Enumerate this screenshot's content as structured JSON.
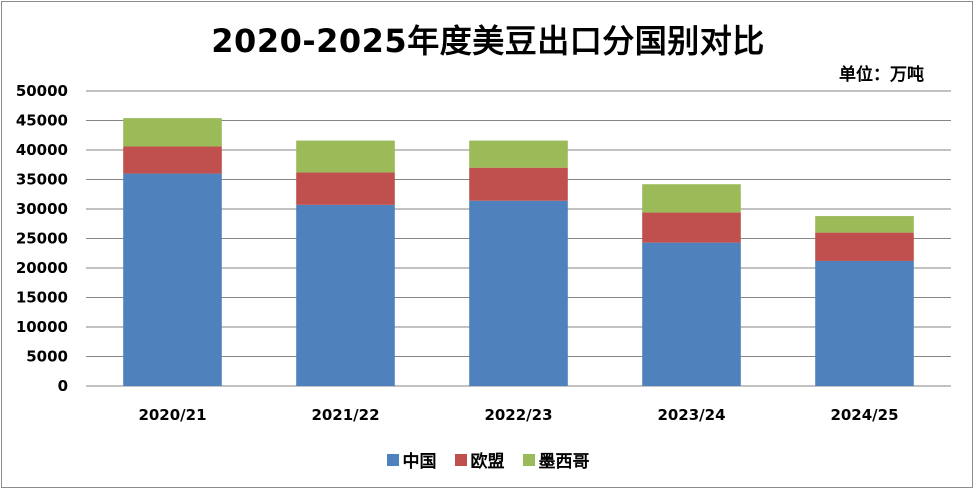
{
  "chart_data": {
    "type": "bar",
    "stacked": true,
    "title": "2020-2025年度美豆出口分国别对比",
    "unit_label": "单位：万吨",
    "categories": [
      "2020/21",
      "2021/22",
      "2022/23",
      "2023/24",
      "2024/25"
    ],
    "series": [
      {
        "name": "中国",
        "color": "#4F81BD",
        "values": [
          36000,
          30700,
          31400,
          24300,
          21200
        ]
      },
      {
        "name": "欧盟",
        "color": "#C0504D",
        "values": [
          4600,
          5500,
          5600,
          5100,
          4800
        ]
      },
      {
        "name": "墨西哥",
        "color": "#9BBB59",
        "values": [
          4800,
          5400,
          4600,
          4800,
          2800
        ]
      }
    ],
    "ylim": [
      0,
      50000
    ],
    "yticks": [
      "0",
      "5000",
      "10000",
      "15000",
      "20000",
      "25000",
      "30000",
      "35000",
      "40000",
      "45000",
      "50000"
    ],
    "grid": true,
    "legend_position": "bottom"
  }
}
